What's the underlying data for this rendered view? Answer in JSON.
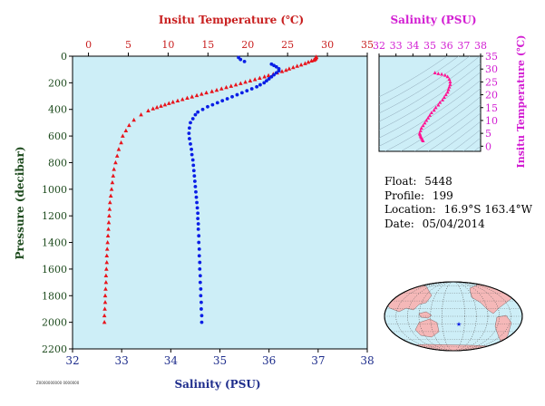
{
  "chart_data": [
    {
      "type": "scatter",
      "top_axis_label": "Insitu Temperature (℃)",
      "top_ticks": [
        "0",
        "5",
        "10",
        "15",
        "20",
        "25",
        "30",
        "35"
      ],
      "bottom_axis_label": "Salinity (PSU)",
      "bottom_ticks": [
        "32",
        "33",
        "34",
        "35",
        "36",
        "37",
        "38"
      ],
      "ylabel": "Pressure (decibar)",
      "y_ticks": [
        "0",
        "200",
        "400",
        "600",
        "800",
        "1000",
        "1200",
        "1400",
        "1600",
        "1800",
        "2000",
        "2200"
      ],
      "temp_lim": [
        -2,
        35
      ],
      "sal_lim": [
        32,
        38
      ],
      "pressure_lim": [
        0,
        2200
      ],
      "y_inverted": true,
      "colors": {
        "temperature": "#e8141c",
        "salinity": "#0a1ee6",
        "background": "#cdeef7"
      },
      "temperature": [
        [
          28.6,
          5
        ],
        [
          28.6,
          10
        ],
        [
          28.5,
          15
        ],
        [
          28.5,
          20
        ],
        [
          28.4,
          25
        ],
        [
          28.3,
          30
        ],
        [
          28.0,
          35
        ],
        [
          27.6,
          45
        ],
        [
          27.2,
          55
        ],
        [
          26.7,
          65
        ],
        [
          26.2,
          75
        ],
        [
          25.7,
          85
        ],
        [
          25.2,
          95
        ],
        [
          24.8,
          105
        ],
        [
          24.3,
          115
        ],
        [
          23.7,
          125
        ],
        [
          23.2,
          135
        ],
        [
          22.6,
          145
        ],
        [
          22.1,
          155
        ],
        [
          21.5,
          165
        ],
        [
          20.9,
          175
        ],
        [
          20.3,
          185
        ],
        [
          19.7,
          195
        ],
        [
          19.1,
          205
        ],
        [
          18.5,
          215
        ],
        [
          17.9,
          225
        ],
        [
          17.3,
          235
        ],
        [
          16.7,
          245
        ],
        [
          16.1,
          255
        ],
        [
          15.5,
          265
        ],
        [
          14.8,
          275
        ],
        [
          14.2,
          285
        ],
        [
          13.6,
          295
        ],
        [
          13.0,
          305
        ],
        [
          12.4,
          315
        ],
        [
          11.8,
          325
        ],
        [
          11.2,
          335
        ],
        [
          10.6,
          345
        ],
        [
          10.1,
          355
        ],
        [
          9.6,
          365
        ],
        [
          9.1,
          375
        ],
        [
          8.6,
          385
        ],
        [
          8.1,
          395
        ],
        [
          7.5,
          410
        ],
        [
          6.6,
          440
        ],
        [
          5.7,
          480
        ],
        [
          5.1,
          520
        ],
        [
          4.7,
          560
        ],
        [
          4.3,
          600
        ],
        [
          4.1,
          650
        ],
        [
          3.8,
          700
        ],
        [
          3.6,
          750
        ],
        [
          3.4,
          800
        ],
        [
          3.2,
          850
        ],
        [
          3.1,
          900
        ],
        [
          3.0,
          950
        ],
        [
          2.9,
          1000
        ],
        [
          2.8,
          1050
        ],
        [
          2.7,
          1100
        ],
        [
          2.65,
          1150
        ],
        [
          2.6,
          1200
        ],
        [
          2.55,
          1250
        ],
        [
          2.5,
          1300
        ],
        [
          2.45,
          1350
        ],
        [
          2.4,
          1400
        ],
        [
          2.35,
          1450
        ],
        [
          2.3,
          1500
        ],
        [
          2.3,
          1550
        ],
        [
          2.25,
          1600
        ],
        [
          2.2,
          1650
        ],
        [
          2.2,
          1700
        ],
        [
          2.15,
          1750
        ],
        [
          2.1,
          1800
        ],
        [
          2.1,
          1850
        ],
        [
          2.05,
          1900
        ],
        [
          2.0,
          1950
        ],
        [
          2.0,
          2000
        ]
      ],
      "salinity": [
        [
          35.38,
          10
        ],
        [
          35.42,
          25
        ],
        [
          35.5,
          40
        ],
        [
          36.05,
          60
        ],
        [
          36.1,
          70
        ],
        [
          36.15,
          80
        ],
        [
          36.2,
          95
        ],
        [
          36.2,
          110
        ],
        [
          36.15,
          125
        ],
        [
          36.1,
          140
        ],
        [
          36.05,
          155
        ],
        [
          36.0,
          170
        ],
        [
          35.95,
          185
        ],
        [
          35.9,
          200
        ],
        [
          35.82,
          215
        ],
        [
          35.75,
          230
        ],
        [
          35.65,
          245
        ],
        [
          35.55,
          260
        ],
        [
          35.45,
          275
        ],
        [
          35.35,
          290
        ],
        [
          35.25,
          305
        ],
        [
          35.15,
          320
        ],
        [
          35.05,
          335
        ],
        [
          34.95,
          350
        ],
        [
          34.85,
          365
        ],
        [
          34.75,
          380
        ],
        [
          34.65,
          400
        ],
        [
          34.55,
          420
        ],
        [
          34.5,
          440
        ],
        [
          34.45,
          470
        ],
        [
          34.4,
          500
        ],
        [
          34.38,
          540
        ],
        [
          34.37,
          580
        ],
        [
          34.38,
          620
        ],
        [
          34.4,
          660
        ],
        [
          34.42,
          700
        ],
        [
          34.43,
          740
        ],
        [
          34.45,
          780
        ],
        [
          34.46,
          820
        ],
        [
          34.47,
          860
        ],
        [
          34.48,
          900
        ],
        [
          34.49,
          940
        ],
        [
          34.5,
          980
        ],
        [
          34.51,
          1020
        ],
        [
          34.52,
          1060
        ],
        [
          34.53,
          1100
        ],
        [
          34.54,
          1140
        ],
        [
          34.55,
          1180
        ],
        [
          34.55,
          1220
        ],
        [
          34.56,
          1260
        ],
        [
          34.56,
          1300
        ],
        [
          34.57,
          1350
        ],
        [
          34.57,
          1400
        ],
        [
          34.58,
          1450
        ],
        [
          34.58,
          1500
        ],
        [
          34.59,
          1550
        ],
        [
          34.59,
          1600
        ],
        [
          34.6,
          1650
        ],
        [
          34.6,
          1700
        ],
        [
          34.61,
          1750
        ],
        [
          34.61,
          1800
        ],
        [
          34.62,
          1850
        ],
        [
          34.62,
          1900
        ],
        [
          34.63,
          1950
        ],
        [
          34.63,
          2000
        ]
      ]
    },
    {
      "type": "scatter",
      "title": "Salinity (PSU)",
      "x_ticks": [
        "32",
        "33",
        "34",
        "35",
        "36",
        "37",
        "38"
      ],
      "ylabel": "Insitu Temperature (℃)",
      "y_ticks": [
        "0",
        "5",
        "10",
        "15",
        "20",
        "25",
        "30",
        "35"
      ],
      "xlim": [
        32,
        38
      ],
      "ylim": [
        -2,
        35
      ],
      "color": "#ff1493",
      "points": [
        [
          35.3,
          28.5
        ],
        [
          35.5,
          28.2
        ],
        [
          35.7,
          28.0
        ],
        [
          35.9,
          27.6
        ],
        [
          36.05,
          27.0
        ],
        [
          36.15,
          26.0
        ],
        [
          36.2,
          25.0
        ],
        [
          36.2,
          24.0
        ],
        [
          36.15,
          23.0
        ],
        [
          36.1,
          22.0
        ],
        [
          36.05,
          21.0
        ],
        [
          35.95,
          20.0
        ],
        [
          35.85,
          19.0
        ],
        [
          35.75,
          18.0
        ],
        [
          35.6,
          17.0
        ],
        [
          35.5,
          16.0
        ],
        [
          35.35,
          15.0
        ],
        [
          35.25,
          14.0
        ],
        [
          35.1,
          13.0
        ],
        [
          35.0,
          12.0
        ],
        [
          34.9,
          11.0
        ],
        [
          34.8,
          10.0
        ],
        [
          34.7,
          9.0
        ],
        [
          34.6,
          8.0
        ],
        [
          34.5,
          7.0
        ],
        [
          34.45,
          6.0
        ],
        [
          34.4,
          5.0
        ],
        [
          34.42,
          4.5
        ],
        [
          34.45,
          4.0
        ],
        [
          34.48,
          3.5
        ],
        [
          34.52,
          3.0
        ],
        [
          34.56,
          2.5
        ],
        [
          34.6,
          2.1
        ]
      ]
    }
  ],
  "float_info": {
    "float_label": "Float:",
    "float_value": "5448",
    "profile_label": "Profile:",
    "profile_value": "199",
    "location_label": "Location:",
    "location_value": "16.9°S  163.4°W",
    "date_label": "Date:",
    "date_value": "05/04/2014"
  },
  "footnote": "Z0000000000 0000000",
  "map": {
    "land_color": "#f5b8b8",
    "ocean_color": "#cdeef7",
    "marker_symbol": "★",
    "marker_color": "#0a1ee6"
  }
}
